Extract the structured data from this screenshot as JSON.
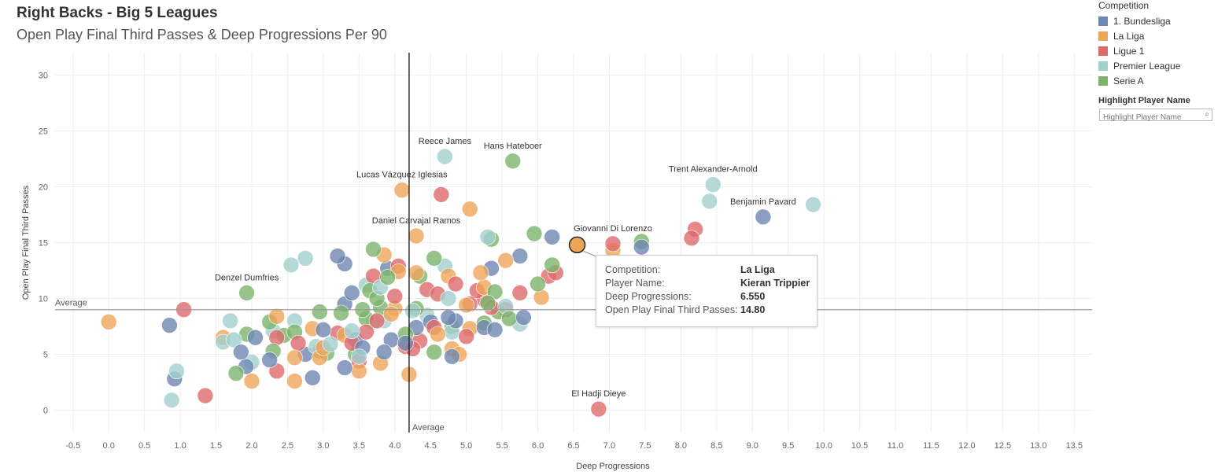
{
  "header": {
    "title": "Right Backs - Big 5 Leagues",
    "subtitle": "Open Play Final Third Passes & Deep Progressions Per 90"
  },
  "legend": {
    "title": "Competition",
    "items": [
      {
        "label": "1. Bundesliga",
        "color": "#6f87b0"
      },
      {
        "label": "La Liga",
        "color": "#eda55a"
      },
      {
        "label": "Ligue 1",
        "color": "#de6a6c"
      },
      {
        "label": "Premier League",
        "color": "#a3d0cf"
      },
      {
        "label": "Serie A",
        "color": "#7cb46b"
      }
    ]
  },
  "highlight": {
    "title": "Highlight Player Name",
    "placeholder": "Highlight Player Name"
  },
  "tooltip": {
    "rows": [
      {
        "label": "Competition:",
        "value": "La Liga"
      },
      {
        "label": "Player Name:",
        "value": "Kieran Trippier"
      },
      {
        "label": "Deep Progressions:",
        "value": "6.550"
      },
      {
        "label": "Open Play Final Third Passes:",
        "value": "14.80"
      }
    ]
  },
  "chart_data": {
    "type": "scatter",
    "xlabel": "Deep Progressions",
    "ylabel": "Open Play Final Third Passes",
    "xlim": [
      -0.75,
      13.75
    ],
    "ylim": [
      -2,
      32
    ],
    "x_ticks": [
      -0.5,
      0.0,
      0.5,
      1.0,
      1.5,
      2.0,
      2.5,
      3.0,
      3.5,
      4.0,
      4.5,
      5.0,
      5.5,
      6.0,
      6.5,
      7.0,
      7.5,
      8.0,
      8.5,
      9.0,
      9.5,
      10.0,
      10.5,
      11.0,
      11.5,
      12.0,
      12.5,
      13.0,
      13.5
    ],
    "y_ticks": [
      0,
      5,
      10,
      15,
      20,
      25,
      30
    ],
    "grid": true,
    "legend_position": "top-right",
    "reference_lines": [
      {
        "axis": "y",
        "value": 9.0,
        "label": "Average"
      },
      {
        "axis": "x",
        "value": 4.2,
        "label": "Average"
      }
    ],
    "series": [
      {
        "name": "1. Bundesliga",
        "color": "#6f87b0",
        "points": [
          [
            0.85,
            7.6
          ],
          [
            0.92,
            2.8
          ],
          [
            1.85,
            5.2
          ],
          [
            1.92,
            3.9
          ],
          [
            2.05,
            6.5
          ],
          [
            2.25,
            4.5
          ],
          [
            2.75,
            5.0
          ],
          [
            2.85,
            2.9
          ],
          [
            3.0,
            7.2
          ],
          [
            3.2,
            13.8
          ],
          [
            3.3,
            13.1
          ],
          [
            3.3,
            9.5
          ],
          [
            3.4,
            10.5
          ],
          [
            3.3,
            3.8
          ],
          [
            3.45,
            6.3
          ],
          [
            3.55,
            5.6
          ],
          [
            3.85,
            5.2
          ],
          [
            3.9,
            12.7
          ],
          [
            3.95,
            6.3
          ],
          [
            4.15,
            6.0
          ],
          [
            4.3,
            7.4
          ],
          [
            4.5,
            7.9
          ],
          [
            4.75,
            8.3
          ],
          [
            4.8,
            4.8
          ],
          [
            4.85,
            8.0
          ],
          [
            5.25,
            7.4
          ],
          [
            5.35,
            12.7
          ],
          [
            5.4,
            7.2
          ],
          [
            5.75,
            13.8
          ],
          [
            5.8,
            8.3
          ],
          [
            6.2,
            15.5
          ],
          [
            7.45,
            14.6
          ],
          [
            9.15,
            17.3
          ]
        ]
      },
      {
        "name": "La Liga",
        "color": "#eda55a",
        "points": [
          [
            0.0,
            7.9
          ],
          [
            1.6,
            6.5
          ],
          [
            2.0,
            2.6
          ],
          [
            2.35,
            8.4
          ],
          [
            2.6,
            4.7
          ],
          [
            2.6,
            2.6
          ],
          [
            2.85,
            7.3
          ],
          [
            2.95,
            4.7
          ],
          [
            3.0,
            5.6
          ],
          [
            3.3,
            6.7
          ],
          [
            3.5,
            3.5
          ],
          [
            3.8,
            4.2
          ],
          [
            3.85,
            13.9
          ],
          [
            3.95,
            8.6
          ],
          [
            4.0,
            9.1
          ],
          [
            4.05,
            12.4
          ],
          [
            4.2,
            3.2
          ],
          [
            4.3,
            15.6
          ],
          [
            4.3,
            12.3
          ],
          [
            4.1,
            19.7
          ],
          [
            4.6,
            6.8
          ],
          [
            4.75,
            12.0
          ],
          [
            4.8,
            5.5
          ],
          [
            4.9,
            5.0
          ],
          [
            5.0,
            9.4
          ],
          [
            5.05,
            7.3
          ],
          [
            5.05,
            18.0
          ],
          [
            5.2,
            12.3
          ],
          [
            5.25,
            11.0
          ],
          [
            5.55,
            13.4
          ],
          [
            6.05,
            10.1
          ],
          [
            6.55,
            14.8
          ],
          [
            7.05,
            14.3
          ]
        ]
      },
      {
        "name": "Ligue 1",
        "color": "#de6a6c",
        "points": [
          [
            1.05,
            9.0
          ],
          [
            1.35,
            1.3
          ],
          [
            2.35,
            6.5
          ],
          [
            2.35,
            3.5
          ],
          [
            2.65,
            6.0
          ],
          [
            2.95,
            5.3
          ],
          [
            3.2,
            6.9
          ],
          [
            3.4,
            6.0
          ],
          [
            3.5,
            4.4
          ],
          [
            3.6,
            7.0
          ],
          [
            3.7,
            12.0
          ],
          [
            3.75,
            8.0
          ],
          [
            4.0,
            10.2
          ],
          [
            4.05,
            12.9
          ],
          [
            4.15,
            5.7
          ],
          [
            4.25,
            5.5
          ],
          [
            4.35,
            6.2
          ],
          [
            4.45,
            10.8
          ],
          [
            4.55,
            7.4
          ],
          [
            4.6,
            10.4
          ],
          [
            4.65,
            19.3
          ],
          [
            4.85,
            11.3
          ],
          [
            5.0,
            6.6
          ],
          [
            5.05,
            9.5
          ],
          [
            5.15,
            10.7
          ],
          [
            5.25,
            9.9
          ],
          [
            5.35,
            9.2
          ],
          [
            5.55,
            9.0
          ],
          [
            5.75,
            10.5
          ],
          [
            6.15,
            12.0
          ],
          [
            6.25,
            12.3
          ],
          [
            7.05,
            14.9
          ],
          [
            8.15,
            15.4
          ],
          [
            8.2,
            16.2
          ],
          [
            6.85,
            0.1
          ]
        ]
      },
      {
        "name": "Premier League",
        "color": "#a3d0cf",
        "points": [
          [
            0.88,
            0.9
          ],
          [
            0.95,
            3.5
          ],
          [
            1.6,
            6.1
          ],
          [
            1.75,
            6.3
          ],
          [
            1.7,
            8.0
          ],
          [
            2.0,
            4.3
          ],
          [
            2.3,
            7.1
          ],
          [
            2.55,
            13.0
          ],
          [
            2.6,
            8.0
          ],
          [
            2.75,
            13.6
          ],
          [
            2.9,
            5.7
          ],
          [
            3.1,
            5.9
          ],
          [
            3.4,
            7.1
          ],
          [
            3.5,
            4.8
          ],
          [
            3.6,
            11.2
          ],
          [
            3.7,
            7.9
          ],
          [
            3.8,
            11.0
          ],
          [
            3.85,
            8.0
          ],
          [
            4.25,
            8.9
          ],
          [
            4.45,
            8.5
          ],
          [
            4.7,
            12.9
          ],
          [
            4.7,
            22.7
          ],
          [
            4.75,
            10.0
          ],
          [
            4.8,
            7.0
          ],
          [
            5.3,
            15.5
          ],
          [
            5.55,
            9.3
          ],
          [
            5.75,
            7.7
          ],
          [
            8.4,
            18.7
          ],
          [
            8.45,
            20.2
          ],
          [
            9.85,
            18.4
          ]
        ]
      },
      {
        "name": "Serie A",
        "color": "#7cb46b",
        "points": [
          [
            1.78,
            3.3
          ],
          [
            1.93,
            10.5
          ],
          [
            1.93,
            6.8
          ],
          [
            2.25,
            7.9
          ],
          [
            2.3,
            5.3
          ],
          [
            2.45,
            6.7
          ],
          [
            2.6,
            7.0
          ],
          [
            2.95,
            8.8
          ],
          [
            3.05,
            5.1
          ],
          [
            3.25,
            8.7
          ],
          [
            3.45,
            5.0
          ],
          [
            3.55,
            9.0
          ],
          [
            3.6,
            8.2
          ],
          [
            3.65,
            10.7
          ],
          [
            3.7,
            14.4
          ],
          [
            3.75,
            10.0
          ],
          [
            3.8,
            9.2
          ],
          [
            3.9,
            11.9
          ],
          [
            4.15,
            6.8
          ],
          [
            4.3,
            9.1
          ],
          [
            4.35,
            12.0
          ],
          [
            4.55,
            13.6
          ],
          [
            4.55,
            5.2
          ],
          [
            4.8,
            7.5
          ],
          [
            5.25,
            7.8
          ],
          [
            5.3,
            9.6
          ],
          [
            5.35,
            15.3
          ],
          [
            5.4,
            10.6
          ],
          [
            5.45,
            8.8
          ],
          [
            5.6,
            8.2
          ],
          [
            5.65,
            22.3
          ],
          [
            5.95,
            15.8
          ],
          [
            6.0,
            11.3
          ],
          [
            6.2,
            13.0
          ],
          [
            7.45,
            15.1
          ]
        ]
      }
    ],
    "annotations": [
      {
        "text": "Reece James",
        "x": 4.7,
        "y": 22.7
      },
      {
        "text": "Hans Hateboer",
        "x": 5.65,
        "y": 22.3
      },
      {
        "text": "Lucas Vázquez Iglesias",
        "x": 4.1,
        "y": 19.7
      },
      {
        "text": "Daniel Carvajal Ramos",
        "x": 4.3,
        "y": 15.6
      },
      {
        "text": "Trent Alexander-Arnold",
        "x": 8.45,
        "y": 20.2
      },
      {
        "text": "Benjamin Pavard",
        "x": 9.15,
        "y": 17.3
      },
      {
        "text": "Giovanni Di Lorenzo",
        "x": 7.05,
        "y": 14.9
      },
      {
        "text": "Denzel Dumfries",
        "x": 1.93,
        "y": 10.5
      },
      {
        "text": "El Hadji Dieye",
        "x": 6.85,
        "y": 0.1
      }
    ],
    "highlighted_point": {
      "x": 6.55,
      "y": 14.8
    }
  }
}
